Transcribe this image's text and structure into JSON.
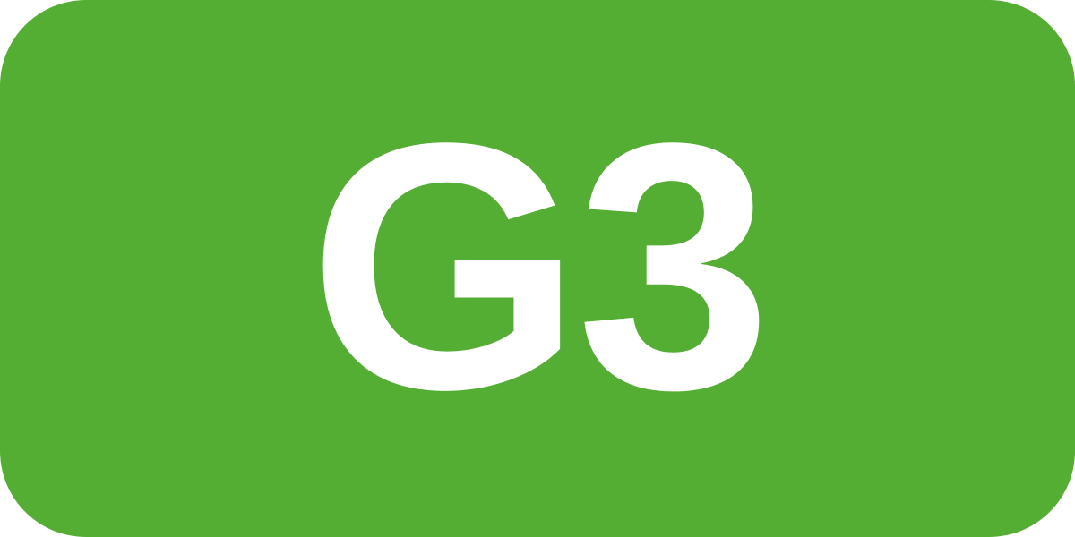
{
  "badge": {
    "label": "G3",
    "background_color": "#54AE34",
    "text_color": "#FFFFFF"
  }
}
